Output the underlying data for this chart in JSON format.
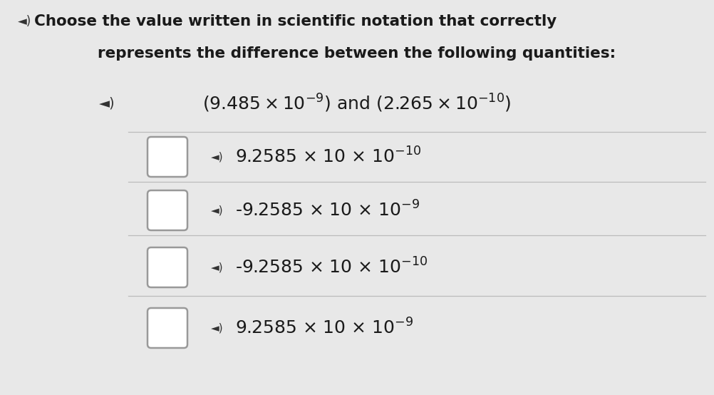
{
  "bg_color": "#e8e8e8",
  "text_color": "#1a1a1a",
  "title_line1": "Choose the value written in scientific notation that correctly",
  "title_line2": "represents the difference between the following quantities:",
  "q_part1": "(9.485 × 10",
  "q_exp1": "-9",
  "q_part2": ") and (2.265 × 10",
  "q_exp2": "-10",
  "q_part3": ")",
  "options": [
    {
      "main": "9.2585 × 10",
      "exp": "-10"
    },
    {
      "main": "-9.2585 × 10",
      "exp": "-9"
    },
    {
      "main": "-9.2585 × 10",
      "exp": "-10"
    },
    {
      "main": "9.2585 × 10",
      "exp": "-9"
    }
  ],
  "divider_color": "#bbbbbb",
  "checkbox_edge_color": "#999999",
  "speaker_color": "#333333"
}
